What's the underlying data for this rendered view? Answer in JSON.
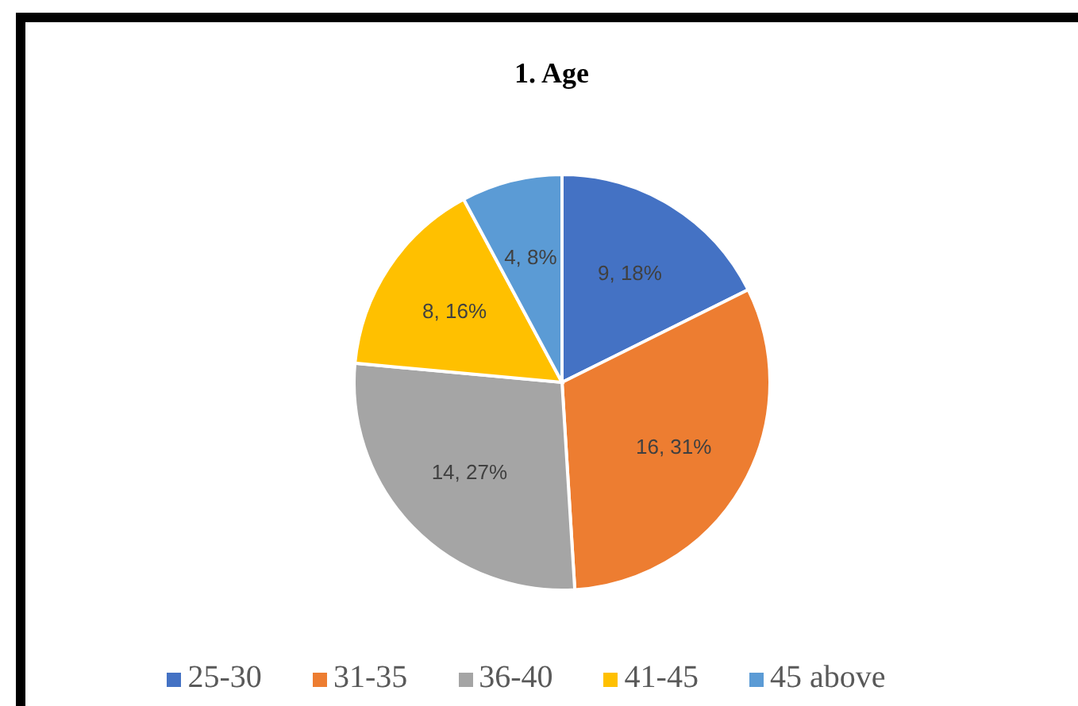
{
  "chart_data": {
    "type": "pie",
    "title": "1. Age",
    "categories": [
      "25-30",
      "31-35",
      "36-40",
      "41-45",
      "45 above"
    ],
    "values": [
      9,
      16,
      14,
      8,
      4
    ],
    "value_labels": [
      "9, 18%",
      "16, 31%",
      "14, 27%",
      "8, 16%",
      "4, 8%"
    ],
    "colors": [
      "#4472c4",
      "#ed7d31",
      "#a5a5a5",
      "#ffc000",
      "#5b9bd5"
    ],
    "legend": "bottom"
  }
}
